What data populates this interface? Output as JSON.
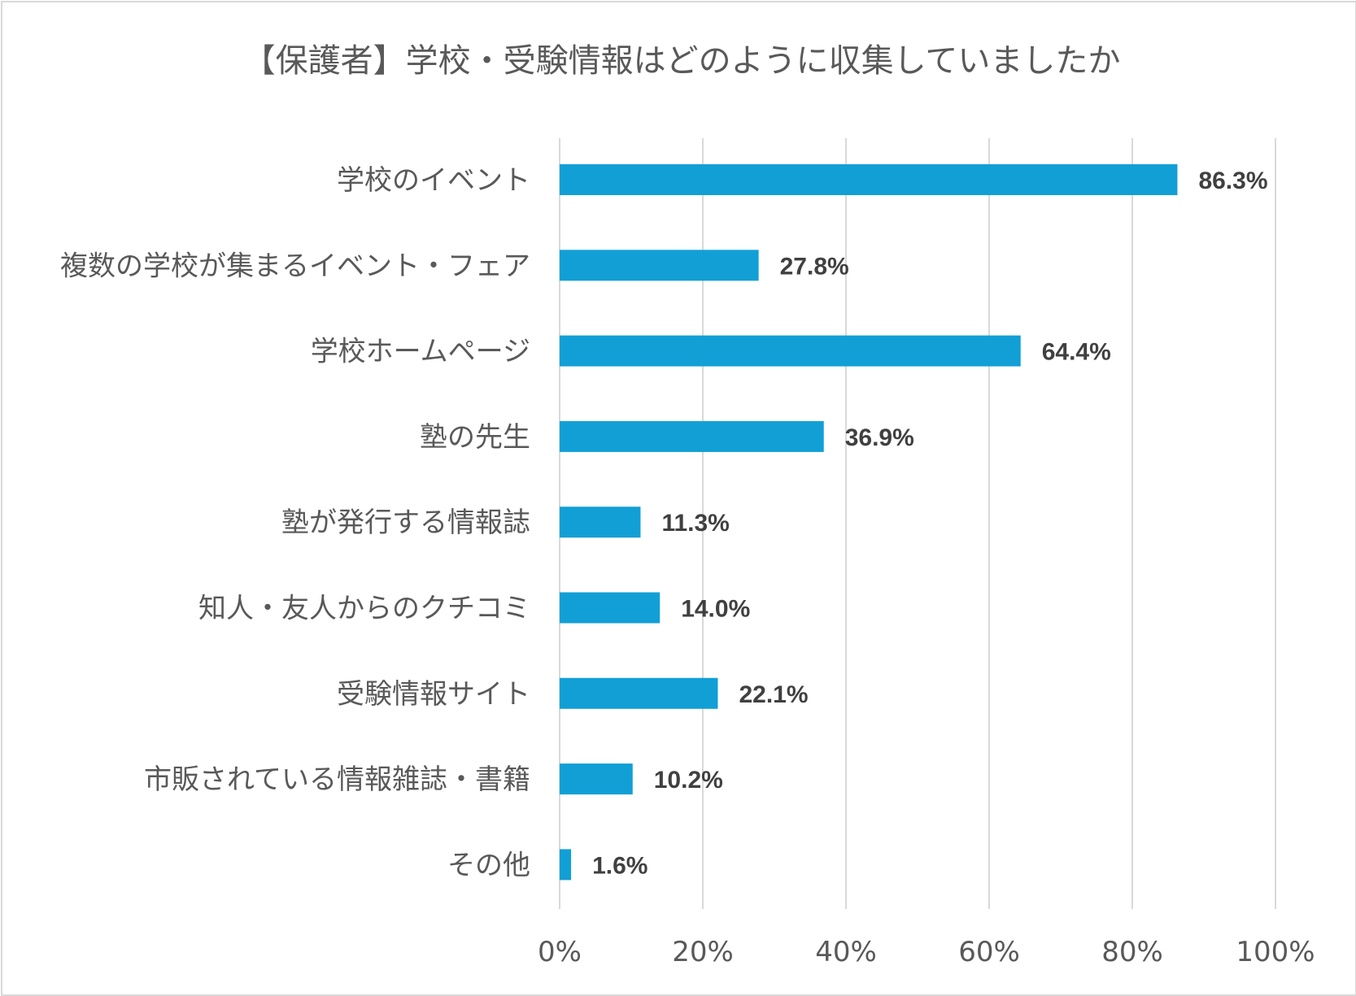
{
  "chart_data": {
    "type": "bar",
    "orientation": "horizontal",
    "title": "【保護者】学校・受験情報はどのように収集していましたか",
    "categories": [
      "学校のイベント",
      "複数の学校が集まるイベント・フェア",
      "学校ホームページ",
      "塾の先生",
      "塾が発行する情報誌",
      "知人・友人からのクチコミ",
      "受験情報サイト",
      "市販されている情報雑誌・書籍",
      "その他"
    ],
    "values": [
      86.3,
      27.8,
      64.4,
      36.9,
      11.3,
      14.0,
      22.1,
      10.2,
      1.6
    ],
    "data_labels": [
      "86.3%",
      "27.8%",
      "64.4%",
      "36.9%",
      "11.3%",
      "14.0%",
      "22.1%",
      "10.2%",
      "1.6%"
    ],
    "x_ticks": [
      "0%",
      "20%",
      "40%",
      "60%",
      "80%",
      "100%"
    ],
    "xlim": [
      0,
      100
    ],
    "xlabel": "",
    "ylabel": "",
    "grid": "vertical",
    "legend": "none",
    "bar_color": "#119fd6"
  }
}
